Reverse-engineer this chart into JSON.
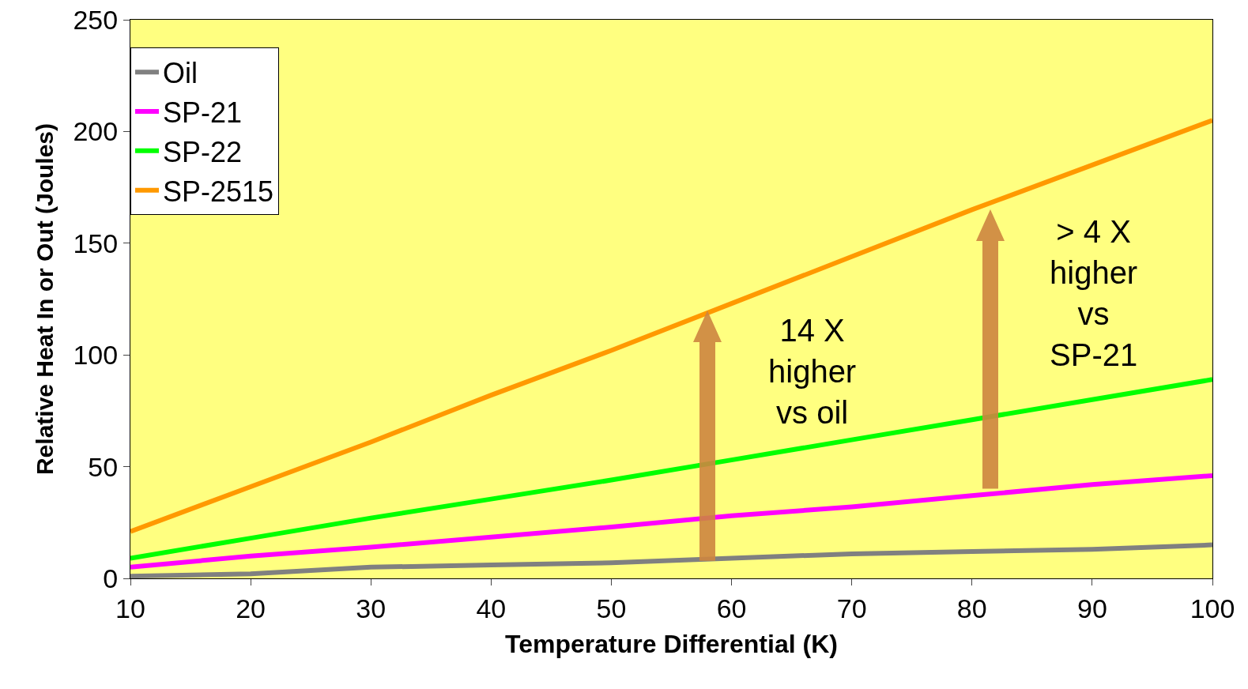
{
  "chart_data": {
    "type": "line",
    "xlabel": "Temperature Differential (K)",
    "ylabel": "Relative Heat In or Out (Joules)",
    "x": [
      10,
      20,
      30,
      40,
      50,
      60,
      70,
      80,
      90,
      100
    ],
    "series": [
      {
        "name": "Oil",
        "color": "#808080",
        "values": [
          1,
          2,
          5,
          6,
          7,
          9,
          11,
          12,
          13,
          15
        ]
      },
      {
        "name": "SP-21",
        "color": "#ff00ff",
        "values": [
          5,
          10,
          14,
          18.5,
          23,
          28,
          32,
          37,
          42,
          46
        ]
      },
      {
        "name": "SP-22",
        "color": "#00ff00",
        "values": [
          9,
          18,
          27,
          35.5,
          44,
          53,
          62,
          71,
          80,
          89
        ]
      },
      {
        "name": "SP-2515",
        "color": "#ff9900",
        "values": [
          21,
          41,
          61,
          82,
          102,
          123,
          144,
          165,
          185,
          205
        ]
      }
    ],
    "xlim": [
      10,
      100
    ],
    "xticks": [
      10,
      20,
      30,
      40,
      50,
      60,
      70,
      80,
      90,
      100
    ],
    "ylim": [
      0,
      250
    ],
    "yticks": [
      0,
      50,
      100,
      150,
      200,
      250
    ],
    "grid": false,
    "legend": "top left",
    "marker": "none",
    "line_style": "solid",
    "annotations": [
      "14 X\nhigher\nvs oil",
      "> 4 X\nhigher\nvs\nSP-21"
    ]
  }
}
